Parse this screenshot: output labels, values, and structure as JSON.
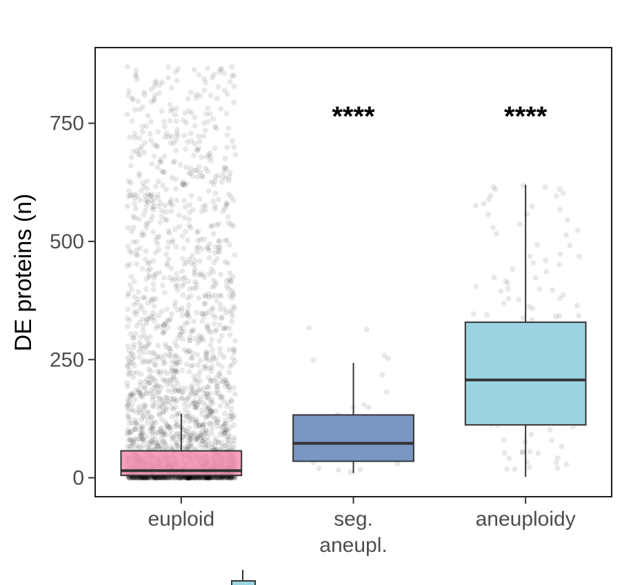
{
  "chart_data": {
    "type": "boxplot",
    "title": "",
    "xlabel": "",
    "ylabel": "DE proteins (n)",
    "ylim": [
      -40,
      910
    ],
    "yticks": [
      0,
      250,
      500,
      750
    ],
    "ytick_labels": [
      "0",
      "250",
      "500",
      "750"
    ],
    "categories": [
      "euploid",
      "seg.\naneupl.",
      "aneuploidy"
    ],
    "category_label_lines": [
      [
        "euploid"
      ],
      [
        "seg.",
        "aneupl."
      ],
      [
        "aneuploidy"
      ]
    ],
    "colors": {
      "euploid": "#f48fb1",
      "seg_aneupl": "#7a97c2",
      "aneuploidy": "#9bd4e1",
      "box_stroke": "#333333",
      "points": "#000000",
      "frame": "#1a1a1a"
    },
    "boxes": [
      {
        "name": "euploid",
        "whisker_low": 0,
        "q1": 5,
        "median": 15,
        "q3": 57,
        "whisker_high": 135,
        "n_points": 2200,
        "max_point": 870,
        "significance": ""
      },
      {
        "name": "seg. aneupl.",
        "whisker_low": 10,
        "q1": 35,
        "median": 73,
        "q3": 133,
        "whisker_high": 243,
        "n_points": 25,
        "max_point": 322,
        "significance": "****"
      },
      {
        "name": "aneuploidy",
        "whisker_low": 2,
        "q1": 112,
        "median": 207,
        "q3": 329,
        "whisker_high": 620,
        "n_points": 130,
        "max_point": 620,
        "significance": "****"
      }
    ]
  }
}
